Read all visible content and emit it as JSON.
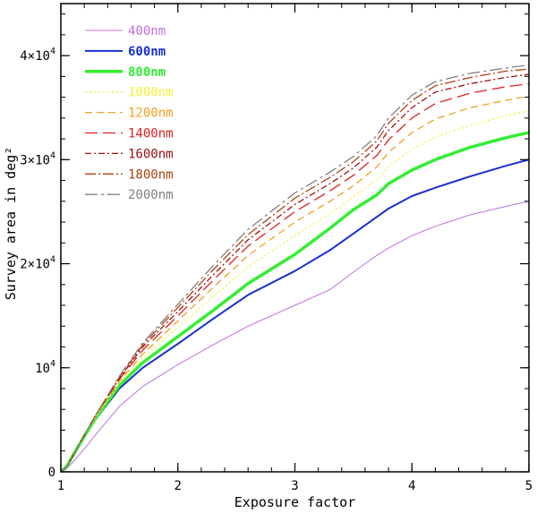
{
  "chart_data": {
    "type": "line",
    "title": "",
    "xlabel": "Exposure factor",
    "ylabel": "Survey area in deg²",
    "xlim": [
      1,
      5
    ],
    "ylim": [
      0,
      45000
    ],
    "x_ticks": [
      1,
      2,
      3,
      4,
      5
    ],
    "x_tick_labels": [
      "1",
      "2",
      "3",
      "4",
      "5"
    ],
    "y_ticks": [
      0,
      10000,
      20000,
      30000,
      40000
    ],
    "y_tick_labels": [
      {
        "base": "0",
        "exp": ""
      },
      {
        "base": "10",
        "exp": "4"
      },
      {
        "base": "2×10",
        "exp": "4"
      },
      {
        "base": "3×10",
        "exp": "4"
      },
      {
        "base": "4×10",
        "exp": "4"
      }
    ],
    "legend_position": "top-left",
    "x": [
      1.0,
      1.05,
      1.1,
      1.2,
      1.3,
      1.5,
      1.7,
      2.0,
      2.3,
      2.6,
      3.0,
      3.3,
      3.5,
      3.7,
      3.8,
      4.0,
      4.2,
      4.5,
      4.8,
      5.0
    ],
    "series": [
      {
        "name": "400nm",
        "color": "#c070e0",
        "dash": "",
        "width": 1,
        "bold": false,
        "values": [
          0,
          300,
          900,
          2200,
          3600,
          6300,
          8200,
          10300,
          12200,
          14000,
          16000,
          17500,
          19200,
          20800,
          21500,
          22700,
          23600,
          24700,
          25500,
          26000
        ]
      },
      {
        "name": "600nm",
        "color": "#1a2fd0",
        "dash": "",
        "width": 2,
        "bold": true,
        "values": [
          0,
          500,
          1500,
          3400,
          5100,
          8000,
          10000,
          12300,
          14700,
          17000,
          19300,
          21300,
          22900,
          24500,
          25300,
          26500,
          27300,
          28400,
          29400,
          30000
        ]
      },
      {
        "name": "800nm",
        "color": "#33ee33",
        "dash": "",
        "width": 3.5,
        "bold": true,
        "values": [
          0,
          500,
          1500,
          3400,
          5200,
          8300,
          10500,
          13000,
          15500,
          18100,
          20900,
          23400,
          25200,
          26600,
          27700,
          29000,
          30000,
          31200,
          32100,
          32600
        ]
      },
      {
        "name": "1000nm",
        "color": "#f2f23a",
        "dash": "2,3",
        "width": 1.3,
        "bold": false,
        "values": [
          0,
          500,
          1500,
          3500,
          5300,
          8500,
          10900,
          13900,
          16800,
          19700,
          22700,
          24800,
          26500,
          28000,
          29300,
          31000,
          32200,
          33300,
          34200,
          34700
        ]
      },
      {
        "name": "1200nm",
        "color": "#f0a020",
        "dash": "8,5",
        "width": 1.3,
        "bold": false,
        "values": [
          0,
          500,
          1500,
          3500,
          5400,
          8700,
          11300,
          14500,
          17700,
          20800,
          24000,
          26000,
          27500,
          29300,
          30700,
          32600,
          33900,
          35000,
          35700,
          36100
        ]
      },
      {
        "name": "1400nm",
        "color": "#e02020",
        "dash": "14,6",
        "width": 1.3,
        "bold": false,
        "values": [
          0,
          500,
          1500,
          3500,
          5500,
          8900,
          11700,
          15000,
          18400,
          21700,
          25000,
          27000,
          28500,
          30400,
          31900,
          34000,
          35400,
          36400,
          37000,
          37300
        ]
      },
      {
        "name": "1600nm",
        "color": "#a01010",
        "dash": "7,3,2,3",
        "width": 1.3,
        "bold": false,
        "values": [
          0,
          500,
          1500,
          3500,
          5500,
          9000,
          12000,
          15400,
          18900,
          22300,
          25700,
          27700,
          29200,
          31200,
          32800,
          35000,
          36500,
          37300,
          37900,
          38200
        ]
      },
      {
        "name": "1800nm",
        "color": "#b04010",
        "dash": "12,3,2,3",
        "width": 1.3,
        "bold": false,
        "values": [
          0,
          500,
          1500,
          3500,
          5500,
          9100,
          12200,
          15800,
          19400,
          22800,
          26300,
          28300,
          29800,
          31800,
          33500,
          35700,
          37100,
          37900,
          38500,
          38700
        ]
      },
      {
        "name": "2000nm",
        "color": "#808080",
        "dash": "14,4,3,4",
        "width": 1.3,
        "bold": false,
        "values": [
          0,
          500,
          1500,
          3500,
          5500,
          9200,
          12400,
          16100,
          19800,
          23300,
          26800,
          28800,
          30300,
          32300,
          34000,
          36200,
          37500,
          38300,
          38800,
          39100
        ]
      }
    ]
  }
}
